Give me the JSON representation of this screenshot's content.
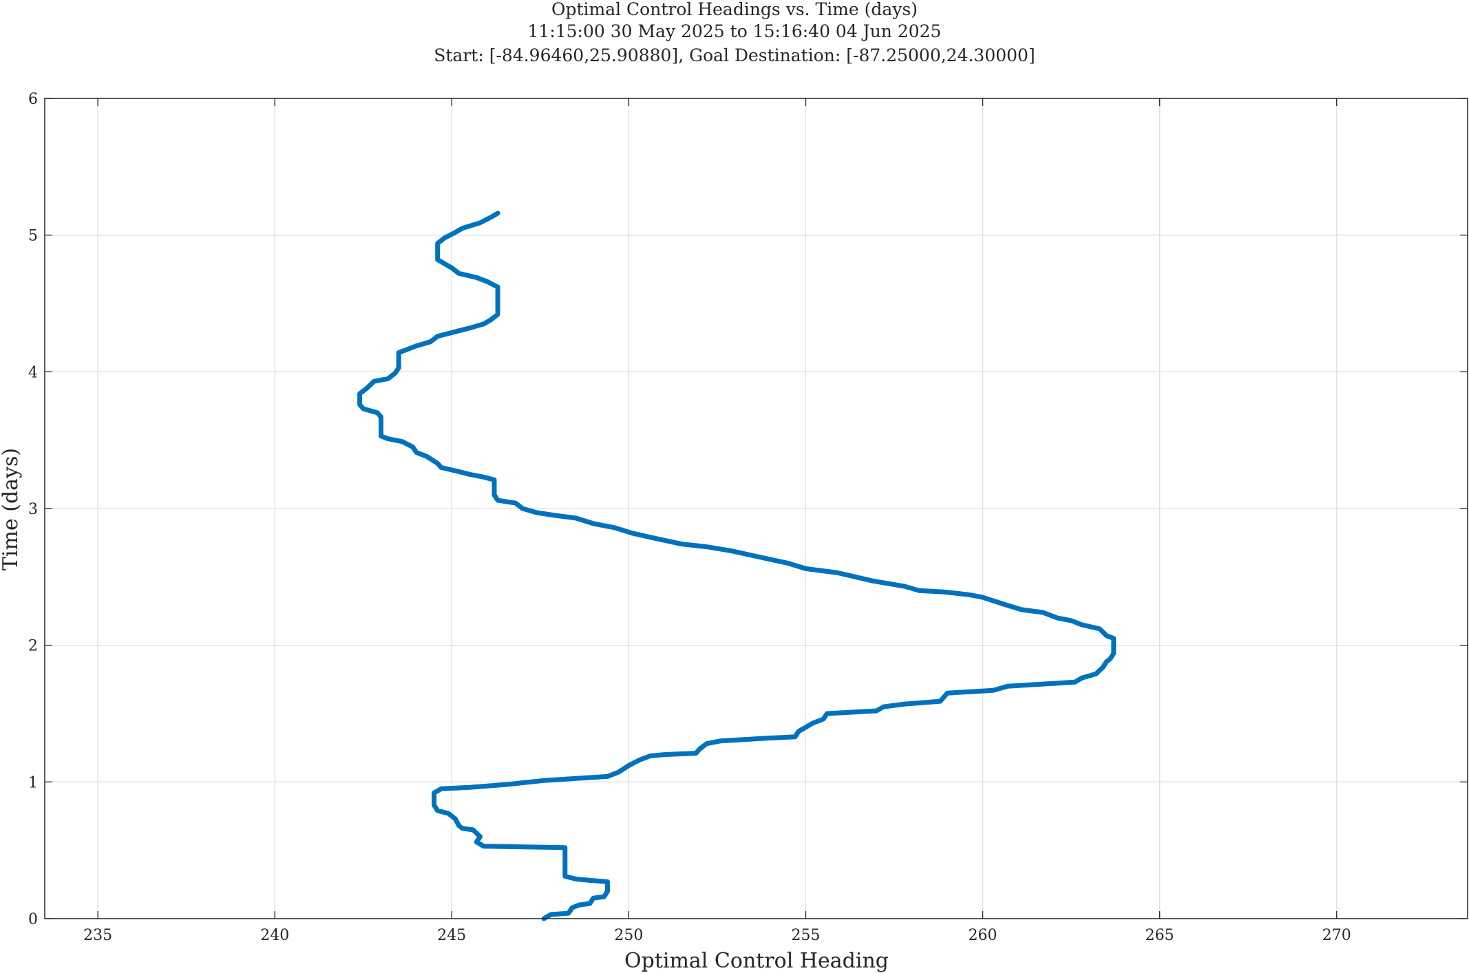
{
  "figure": {
    "title_lines": [
      "Optimal Control Headings vs. Time (days)",
      "11:15:00 30 May 2025 to 15:16:40 04 Jun 2025",
      "Start: [-84.96460,25.90880], Goal Destination: [-87.25000,24.30000]"
    ]
  },
  "chart_data": {
    "type": "line",
    "title": "Optimal Control Headings vs. Time (days)",
    "subtitle": "11:15:00 30 May 2025 to 15:16:40 04 Jun 2025 / Start: [-84.96460,25.90880], Goal Destination: [-87.25000,24.30000]",
    "xlabel": "Optimal Control Heading",
    "ylabel": "Time (days)",
    "xlim": [
      233.5,
      273.7
    ],
    "ylim": [
      0,
      6
    ],
    "x_ticks": [
      235,
      240,
      245,
      250,
      255,
      260,
      265,
      270
    ],
    "y_ticks": [
      0,
      1,
      2,
      3,
      4,
      5,
      6
    ],
    "grid": true,
    "legend": "none",
    "series": [
      {
        "color": "#0072BD",
        "points": [
          [
            247.6,
            0.0
          ],
          [
            247.8,
            0.03
          ],
          [
            248.3,
            0.04
          ],
          [
            248.4,
            0.08
          ],
          [
            248.6,
            0.1
          ],
          [
            248.9,
            0.11
          ],
          [
            249.0,
            0.15
          ],
          [
            249.3,
            0.16
          ],
          [
            249.4,
            0.2
          ],
          [
            249.4,
            0.27
          ],
          [
            248.9,
            0.28
          ],
          [
            248.5,
            0.29
          ],
          [
            248.2,
            0.31
          ],
          [
            248.2,
            0.52
          ],
          [
            245.9,
            0.53
          ],
          [
            245.7,
            0.56
          ],
          [
            245.8,
            0.6
          ],
          [
            245.6,
            0.65
          ],
          [
            245.3,
            0.66
          ],
          [
            245.2,
            0.68
          ],
          [
            245.1,
            0.73
          ],
          [
            244.9,
            0.77
          ],
          [
            244.6,
            0.79
          ],
          [
            244.5,
            0.83
          ],
          [
            244.5,
            0.92
          ],
          [
            244.7,
            0.95
          ],
          [
            245.5,
            0.96
          ],
          [
            246.5,
            0.98
          ],
          [
            247.6,
            1.01
          ],
          [
            249.4,
            1.04
          ],
          [
            249.7,
            1.07
          ],
          [
            250.0,
            1.12
          ],
          [
            250.3,
            1.16
          ],
          [
            250.6,
            1.19
          ],
          [
            251.0,
            1.2
          ],
          [
            251.9,
            1.21
          ],
          [
            252.0,
            1.24
          ],
          [
            252.2,
            1.28
          ],
          [
            252.6,
            1.3
          ],
          [
            253.9,
            1.32
          ],
          [
            254.7,
            1.33
          ],
          [
            254.8,
            1.37
          ],
          [
            255.0,
            1.4
          ],
          [
            255.2,
            1.43
          ],
          [
            255.5,
            1.46
          ],
          [
            255.6,
            1.5
          ],
          [
            257.0,
            1.52
          ],
          [
            257.2,
            1.55
          ],
          [
            257.8,
            1.57
          ],
          [
            258.8,
            1.59
          ],
          [
            259.0,
            1.65
          ],
          [
            260.3,
            1.67
          ],
          [
            260.7,
            1.7
          ],
          [
            262.6,
            1.73
          ],
          [
            262.8,
            1.76
          ],
          [
            263.2,
            1.79
          ],
          [
            263.4,
            1.84
          ],
          [
            263.5,
            1.88
          ],
          [
            263.6,
            1.9
          ],
          [
            263.7,
            1.94
          ],
          [
            263.7,
            2.05
          ],
          [
            263.5,
            2.07
          ],
          [
            263.3,
            2.12
          ],
          [
            262.8,
            2.15
          ],
          [
            262.5,
            2.18
          ],
          [
            262.1,
            2.2
          ],
          [
            261.7,
            2.24
          ],
          [
            261.1,
            2.26
          ],
          [
            260.6,
            2.3
          ],
          [
            260.0,
            2.35
          ],
          [
            259.6,
            2.37
          ],
          [
            258.9,
            2.39
          ],
          [
            258.2,
            2.4
          ],
          [
            257.8,
            2.43
          ],
          [
            256.9,
            2.47
          ],
          [
            255.9,
            2.53
          ],
          [
            255.0,
            2.56
          ],
          [
            254.5,
            2.6
          ],
          [
            253.6,
            2.65
          ],
          [
            252.9,
            2.69
          ],
          [
            252.2,
            2.72
          ],
          [
            251.5,
            2.74
          ],
          [
            250.6,
            2.79
          ],
          [
            250.1,
            2.82
          ],
          [
            249.6,
            2.86
          ],
          [
            249.0,
            2.89
          ],
          [
            248.5,
            2.93
          ],
          [
            247.9,
            2.95
          ],
          [
            247.4,
            2.97
          ],
          [
            247.0,
            3.0
          ],
          [
            246.8,
            3.04
          ],
          [
            246.3,
            3.06
          ],
          [
            246.2,
            3.1
          ],
          [
            246.2,
            3.21
          ],
          [
            245.9,
            3.23
          ],
          [
            245.5,
            3.25
          ],
          [
            245.2,
            3.27
          ],
          [
            244.7,
            3.3
          ],
          [
            244.6,
            3.33
          ],
          [
            244.3,
            3.38
          ],
          [
            244.0,
            3.41
          ],
          [
            243.9,
            3.45
          ],
          [
            243.6,
            3.49
          ],
          [
            243.2,
            3.51
          ],
          [
            243.0,
            3.53
          ],
          [
            243.0,
            3.67
          ],
          [
            242.9,
            3.7
          ],
          [
            242.5,
            3.73
          ],
          [
            242.4,
            3.76
          ],
          [
            242.4,
            3.84
          ],
          [
            242.6,
            3.88
          ],
          [
            242.8,
            3.93
          ],
          [
            243.2,
            3.95
          ],
          [
            243.4,
            3.99
          ],
          [
            243.5,
            4.03
          ],
          [
            243.5,
            4.14
          ],
          [
            243.8,
            4.17
          ],
          [
            244.0,
            4.19
          ],
          [
            244.4,
            4.22
          ],
          [
            244.6,
            4.26
          ],
          [
            245.2,
            4.3
          ],
          [
            245.5,
            4.32
          ],
          [
            245.9,
            4.35
          ],
          [
            246.1,
            4.38
          ],
          [
            246.3,
            4.42
          ],
          [
            246.3,
            4.55
          ],
          [
            246.3,
            4.62
          ],
          [
            246.0,
            4.66
          ],
          [
            245.7,
            4.69
          ],
          [
            245.2,
            4.72
          ],
          [
            245.0,
            4.76
          ],
          [
            244.8,
            4.79
          ],
          [
            244.6,
            4.82
          ],
          [
            244.6,
            4.94
          ],
          [
            244.8,
            4.98
          ],
          [
            245.1,
            5.02
          ],
          [
            245.3,
            5.05
          ],
          [
            245.8,
            5.09
          ],
          [
            246.1,
            5.13
          ],
          [
            246.3,
            5.16
          ]
        ]
      }
    ]
  }
}
